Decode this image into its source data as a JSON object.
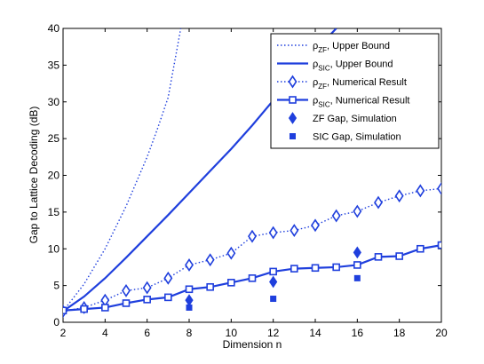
{
  "chart_data": {
    "type": "line",
    "xlabel": "Dimension n",
    "ylabel": "Gap to Lattice Decoding (dB)",
    "xlim": [
      2,
      20
    ],
    "ylim": [
      0,
      40
    ],
    "xticks": [
      2,
      4,
      6,
      8,
      10,
      12,
      14,
      16,
      18,
      20
    ],
    "yticks": [
      0,
      5,
      10,
      15,
      20,
      25,
      30,
      35,
      40
    ],
    "grid": false,
    "legend_position": "top-right",
    "color": "#1f3fdd",
    "series": [
      {
        "name": "ρ_ZF, Upper Bound",
        "legend_main": "ρ",
        "legend_sub": "ZF",
        "legend_rest": ", Upper Bound",
        "style": "dotted",
        "marker": "none",
        "x": [
          2,
          3,
          4,
          5,
          6,
          6.5,
          7,
          7.6
        ],
        "y": [
          1.5,
          5.2,
          10,
          15.8,
          22.5,
          26.4,
          30.6,
          40
        ]
      },
      {
        "name": "ρ_SIC, Upper Bound",
        "legend_main": "ρ",
        "legend_sub": "SIC",
        "legend_rest": ", Upper Bound",
        "style": "solid",
        "marker": "none",
        "x": [
          2,
          3,
          4,
          5,
          6,
          7,
          8,
          9,
          10,
          11,
          12,
          13,
          14,
          15
        ],
        "y": [
          1.5,
          3.5,
          6,
          8.8,
          11.7,
          14.6,
          17.6,
          20.6,
          23.6,
          26.8,
          30.2,
          33.6,
          37,
          40
        ]
      },
      {
        "name": "ρ_ZF, Numerical Result",
        "legend_main": "ρ",
        "legend_sub": "ZF",
        "legend_rest": ", Numerical Result",
        "style": "dotted",
        "marker": "diamond",
        "x": [
          2,
          3,
          4,
          5,
          6,
          7,
          8,
          9,
          10,
          11,
          12,
          13,
          14,
          15,
          16,
          17,
          18,
          19,
          20
        ],
        "y": [
          1.5,
          2.0,
          3.0,
          4.3,
          4.7,
          6.0,
          7.8,
          8.5,
          9.4,
          11.7,
          12.2,
          12.5,
          13.2,
          14.5,
          15.1,
          16.3,
          17.2,
          17.9,
          18.2
        ]
      },
      {
        "name": "ρ_SIC, Numerical Result",
        "legend_main": "ρ",
        "legend_sub": "SIC",
        "legend_rest": ", Numerical Result",
        "style": "solid",
        "marker": "square",
        "x": [
          2,
          3,
          4,
          5,
          6,
          7,
          8,
          9,
          10,
          11,
          12,
          13,
          14,
          15,
          16,
          17,
          18,
          19,
          20
        ],
        "y": [
          1.6,
          1.8,
          2.0,
          2.6,
          3.1,
          3.4,
          4.5,
          4.8,
          5.4,
          6.0,
          6.9,
          7.3,
          7.4,
          7.5,
          7.8,
          8.9,
          9.0,
          10.0,
          10.5
        ]
      },
      {
        "name": "ZF Gap, Simulation",
        "legend_main": "ZF Gap, Simulation",
        "legend_sub": "",
        "legend_rest": "",
        "style": "none",
        "marker": "filled-diamond",
        "x": [
          8,
          12,
          16
        ],
        "y": [
          3.0,
          5.5,
          9.5
        ]
      },
      {
        "name": "SIC Gap, Simulation",
        "legend_main": "SIC Gap, Simulation",
        "legend_sub": "",
        "legend_rest": "",
        "style": "none",
        "marker": "filled-square",
        "x": [
          8,
          12,
          16
        ],
        "y": [
          2.0,
          3.2,
          6.0
        ]
      }
    ]
  }
}
